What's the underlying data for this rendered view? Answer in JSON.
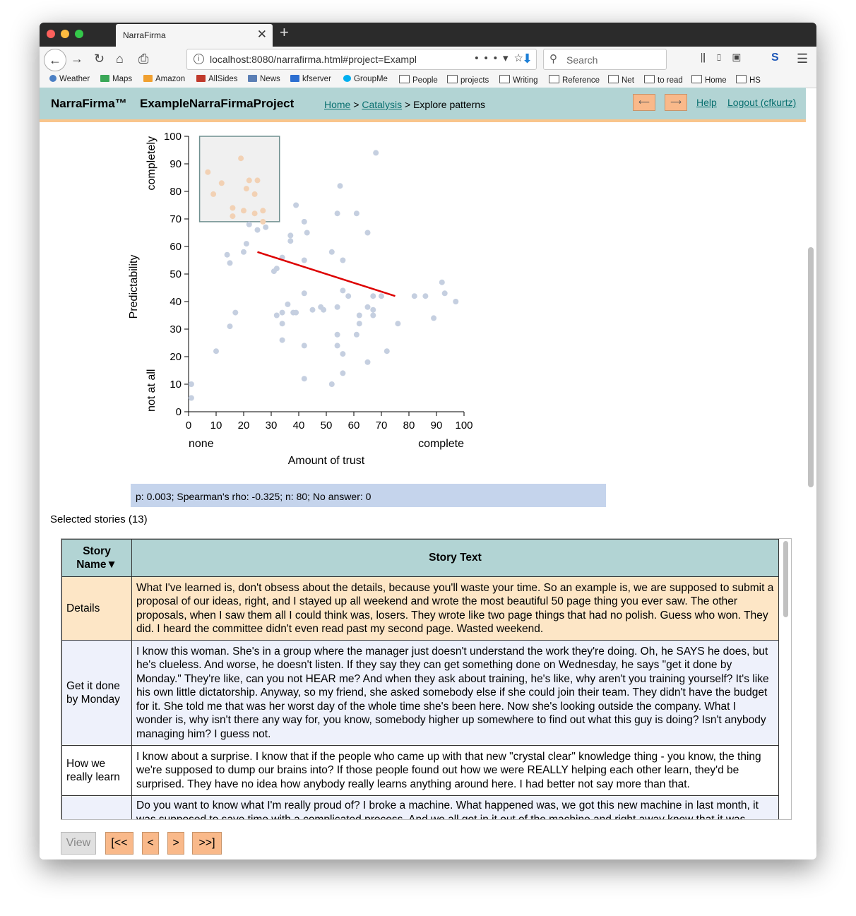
{
  "browser": {
    "tab_title": "NarraFirma",
    "url": "localhost:8080/narrafirma.html#project=Exampl",
    "search_placeholder": "Search",
    "bookmarks": [
      "Weather",
      "Maps",
      "Amazon",
      "AllSides",
      "News",
      "kfserver",
      "GroupMe",
      "People",
      "projects",
      "Writing",
      "Reference",
      "Net",
      "to read",
      "Home",
      "HS"
    ]
  },
  "header": {
    "brand": "NarraFirma™",
    "project": "ExampleNarraFirmaProject",
    "crumb_home": "Home",
    "crumb_catalysis": "Catalysis",
    "crumb_current": "Explore patterns",
    "prev_symbol": "⟵",
    "next_symbol": "⟶",
    "help": "Help",
    "logout": "Logout (cfkurtz)"
  },
  "chart_data": {
    "type": "scatter",
    "xlabel": "Amount of trust",
    "ylabel": "Predictability",
    "x_low_label": "none",
    "x_high_label": "complete",
    "y_low_label": "not at all",
    "y_high_label": "completely",
    "xlim": [
      0,
      100
    ],
    "ylim": [
      0,
      100
    ],
    "x_ticks": [
      "0",
      "10",
      "20",
      "30",
      "40",
      "50",
      "60",
      "70",
      "80",
      "90",
      "100"
    ],
    "y_ticks": [
      "0",
      "10",
      "20",
      "30",
      "40",
      "50",
      "60",
      "70",
      "80",
      "90",
      "100"
    ],
    "point_color": "#c5cfe0",
    "selected_color": "#f2d1b4",
    "trend_color": "#dd0000",
    "selection_box": {
      "x0": 4,
      "x1": 33,
      "y0": 69,
      "y1": 100
    },
    "trendline": {
      "x0": 25,
      "y0": 58,
      "x1": 75,
      "y1": 42
    },
    "points": [
      [
        7,
        87
      ],
      [
        9,
        79
      ],
      [
        12,
        83
      ],
      [
        16,
        74
      ],
      [
        16,
        71
      ],
      [
        19,
        92
      ],
      [
        20,
        73
      ],
      [
        21,
        81
      ],
      [
        22,
        84
      ],
      [
        24,
        79
      ],
      [
        24,
        72
      ],
      [
        25,
        84
      ],
      [
        27,
        73
      ],
      [
        1,
        10
      ],
      [
        1,
        5
      ],
      [
        10,
        22
      ],
      [
        14,
        57
      ],
      [
        15,
        54
      ],
      [
        15,
        31
      ],
      [
        17,
        36
      ],
      [
        20,
        58
      ],
      [
        21,
        61
      ],
      [
        22,
        68
      ],
      [
        25,
        66
      ],
      [
        27,
        69
      ],
      [
        28,
        67
      ],
      [
        31,
        51
      ],
      [
        32,
        52
      ],
      [
        32,
        35
      ],
      [
        34,
        56
      ],
      [
        34,
        36
      ],
      [
        34,
        32
      ],
      [
        34,
        26
      ],
      [
        36,
        39
      ],
      [
        37,
        64
      ],
      [
        37,
        62
      ],
      [
        38,
        36
      ],
      [
        39,
        75
      ],
      [
        42,
        69
      ],
      [
        42,
        55
      ],
      [
        42,
        43
      ],
      [
        42,
        24
      ],
      [
        42,
        12
      ],
      [
        43,
        65
      ],
      [
        45,
        37
      ],
      [
        48,
        38
      ],
      [
        49,
        37
      ],
      [
        52,
        58
      ],
      [
        52,
        10
      ],
      [
        54,
        72
      ],
      [
        54,
        38
      ],
      [
        54,
        28
      ],
      [
        54,
        24
      ],
      [
        55,
        82
      ],
      [
        56,
        55
      ],
      [
        56,
        44
      ],
      [
        56,
        21
      ],
      [
        56,
        14
      ],
      [
        58,
        42
      ],
      [
        61,
        72
      ],
      [
        61,
        28
      ],
      [
        62,
        35
      ],
      [
        62,
        32
      ],
      [
        65,
        65
      ],
      [
        65,
        38
      ],
      [
        65,
        18
      ],
      [
        67,
        42
      ],
      [
        67,
        37
      ],
      [
        67,
        35
      ],
      [
        68,
        94
      ],
      [
        70,
        42
      ],
      [
        72,
        22
      ],
      [
        76,
        32
      ],
      [
        82,
        42
      ],
      [
        86,
        42
      ],
      [
        89,
        34
      ],
      [
        92,
        47
      ],
      [
        93,
        43
      ],
      [
        97,
        40
      ],
      [
        39,
        36
      ]
    ]
  },
  "stats": "p: 0.003; Spearman's rho: -0.325; n: 80; No answer: 0",
  "selected_heading": "Selected stories (13)",
  "table": {
    "col_name": "Story Name▼",
    "col_text": "Story Text",
    "rows": [
      {
        "name": "Details",
        "text": "What I've learned is, don't obsess about the details, because you'll waste your time. So an example is, we are supposed to submit a proposal of our ideas, right, and I stayed up all weekend and wrote the most beautiful 50 page thing you ever saw. The other proposals, when I saw them all I could think was, losers. They wrote like two page things that had no polish. Guess who won. They did. I heard the committee didn't even read past my second page. Wasted weekend."
      },
      {
        "name": "Get it done by Monday",
        "text": "I know this woman. She's in a group where the manager just doesn't understand the work they're doing. Oh, he SAYS he does, but he's clueless. And worse, he doesn't listen. If they say they can get something done on Wednesday, he says \"get it done by Monday.\" They're like, can you not HEAR me? And when they ask about training, he's like, why aren't you training yourself? It's like his own little dictatorship. Anyway, so my friend, she asked somebody else if she could join their team. They didn't have the budget for it. She told me that was her worst day of the whole time she's been here. Now she's looking outside the company. What I wonder is, why isn't there any way for, you know, somebody higher up somewhere to find out what this guy is doing? Isn't anybody managing him? I guess not."
      },
      {
        "name": "How we really learn",
        "text": "I know about a surprise. I know that if the people who came up with that new \"crystal clear\" knowledge thing - you know, the thing we're supposed to dump our brains into? If those people found out how we were REALLY helping each other learn, they'd be surprised. They have no idea how anybody really learns anything around here. I had better not say more than that."
      },
      {
        "name": "",
        "text": "Do you want to know what I'm really proud of? I broke a machine. What happened was, we got this new machine in last month, it was supposed to save time with a complicated process. And we all got in it out of the machine and right away knew that it was"
      }
    ]
  },
  "pager": {
    "view": "View",
    "first": "[<<",
    "prev": "<",
    "next": ">",
    "last": ">>]"
  }
}
